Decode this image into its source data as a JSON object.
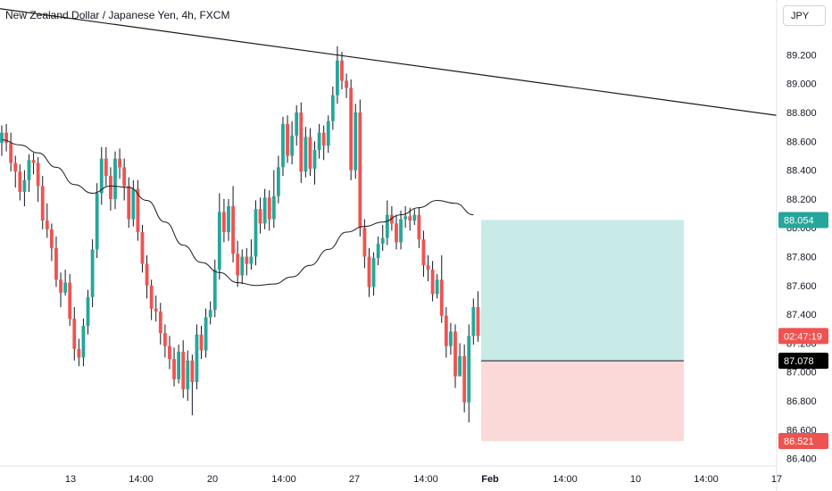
{
  "header": {
    "title": "New Zealand Dollar / Japanese Yen, 4h, FXCM",
    "currency": "JPY"
  },
  "colors": {
    "up": "#26a69a",
    "down": "#ef5350",
    "target_zone": "#c8ebe8",
    "stop_zone": "#fcd9d9",
    "ma": "#1a1a1a",
    "trendline": "#1a1a1a"
  },
  "badges": {
    "target": "88.054",
    "countdown": "02:47:19",
    "entry": "87.078",
    "stop": "86.521"
  },
  "chart_data": {
    "type": "candlestick",
    "symbol": "NZDJPY",
    "timeframe": "4h",
    "y_ticks": [
      "89.200",
      "89.000",
      "88.800",
      "88.600",
      "88.400",
      "88.200",
      "88.000",
      "87.800",
      "87.600",
      "87.400",
      "87.200",
      "87.000",
      "86.800",
      "86.600",
      "86.400"
    ],
    "x_ticks": [
      "13",
      "14:00",
      "20",
      "14:00",
      "27",
      "14:00",
      "Feb",
      "14:00",
      "10",
      "14:00",
      "17"
    ],
    "ylim": [
      86.37,
      89.33
    ],
    "trendline": [
      [
        0,
        89.52
      ],
      [
        1,
        88.78
      ]
    ],
    "position": {
      "target": 88.054,
      "entry": 87.078,
      "stop": 86.521
    },
    "candles": [
      [
        88.59,
        88.66,
        88.71,
        88.5
      ],
      [
        88.66,
        88.59,
        88.72,
        88.53
      ],
      [
        88.59,
        88.45,
        88.66,
        88.39
      ],
      [
        88.45,
        88.39,
        88.5,
        88.28
      ],
      [
        88.39,
        88.25,
        88.44,
        88.19
      ],
      [
        88.25,
        88.33,
        88.4,
        88.15
      ],
      [
        88.33,
        88.47,
        88.51,
        88.25
      ],
      [
        88.47,
        88.45,
        88.52,
        88.37
      ],
      [
        88.45,
        88.29,
        88.49,
        88.18
      ],
      [
        88.29,
        88.05,
        88.36,
        87.99
      ],
      [
        88.05,
        87.99,
        88.17,
        87.93
      ],
      [
        87.99,
        87.86,
        88.03,
        87.77
      ],
      [
        87.86,
        87.64,
        87.94,
        87.59
      ],
      [
        87.64,
        87.55,
        87.69,
        87.45
      ],
      [
        87.55,
        87.62,
        87.71,
        87.53
      ],
      [
        87.62,
        87.37,
        87.68,
        87.32
      ],
      [
        87.37,
        87.16,
        87.45,
        87.08
      ],
      [
        87.16,
        87.1,
        87.23,
        87.04
      ],
      [
        87.1,
        87.32,
        87.37,
        87.04
      ],
      [
        87.32,
        87.52,
        87.57,
        87.26
      ],
      [
        87.52,
        87.85,
        87.92,
        87.45
      ],
      [
        87.85,
        88.24,
        88.31,
        87.79
      ],
      [
        88.24,
        88.48,
        88.56,
        88.16
      ],
      [
        88.48,
        88.36,
        88.56,
        88.29
      ],
      [
        88.36,
        88.2,
        88.42,
        88.12
      ],
      [
        88.2,
        88.48,
        88.53,
        88.13
      ],
      [
        88.48,
        88.42,
        88.55,
        88.34
      ],
      [
        88.42,
        88.29,
        88.48,
        88.19
      ],
      [
        88.29,
        88.06,
        88.35,
        88.0
      ],
      [
        88.06,
        88.27,
        88.33,
        88.01
      ],
      [
        88.27,
        87.97,
        88.33,
        87.91
      ],
      [
        87.97,
        87.75,
        88.02,
        87.69
      ],
      [
        87.75,
        87.6,
        87.81,
        87.51
      ],
      [
        87.6,
        87.44,
        87.64,
        87.36
      ],
      [
        87.44,
        87.42,
        87.53,
        87.35
      ],
      [
        87.42,
        87.27,
        87.48,
        87.19
      ],
      [
        87.27,
        87.18,
        87.33,
        87.1
      ],
      [
        87.18,
        87.09,
        87.25,
        87.02
      ],
      [
        87.09,
        86.95,
        87.17,
        86.9
      ],
      [
        86.95,
        87.14,
        87.19,
        86.92
      ],
      [
        87.14,
        86.88,
        87.22,
        86.82
      ],
      [
        86.88,
        87.08,
        87.15,
        86.8
      ],
      [
        87.08,
        86.93,
        87.12,
        86.7
      ],
      [
        86.93,
        87.26,
        87.33,
        86.88
      ],
      [
        87.26,
        87.15,
        87.32,
        87.09
      ],
      [
        87.15,
        87.38,
        87.44,
        87.1
      ],
      [
        87.38,
        87.43,
        87.49,
        87.33
      ],
      [
        87.43,
        87.71,
        87.78,
        87.38
      ],
      [
        87.71,
        88.11,
        88.24,
        87.64
      ],
      [
        88.11,
        87.97,
        88.2,
        87.9
      ],
      [
        87.97,
        88.15,
        88.2,
        87.91
      ],
      [
        88.15,
        87.82,
        88.29,
        87.76
      ],
      [
        87.82,
        87.67,
        87.91,
        87.59
      ],
      [
        87.67,
        87.8,
        87.85,
        87.61
      ],
      [
        87.8,
        87.75,
        87.86,
        87.67
      ],
      [
        87.75,
        87.8,
        87.92,
        87.71
      ],
      [
        87.8,
        88.13,
        88.19,
        87.74
      ],
      [
        88.13,
        88.03,
        88.21,
        87.96
      ],
      [
        88.03,
        88.21,
        88.27,
        87.99
      ],
      [
        88.21,
        88.06,
        88.26,
        87.98
      ],
      [
        88.06,
        88.22,
        88.4,
        88.0
      ],
      [
        88.22,
        88.42,
        88.5,
        88.17
      ],
      [
        88.42,
        88.72,
        88.77,
        88.36
      ],
      [
        88.72,
        88.5,
        88.78,
        88.45
      ],
      [
        88.5,
        88.64,
        88.74,
        88.44
      ],
      [
        88.64,
        88.8,
        88.85,
        88.57
      ],
      [
        88.8,
        88.39,
        88.87,
        88.31
      ],
      [
        88.39,
        88.63,
        88.7,
        88.35
      ],
      [
        88.63,
        88.41,
        88.69,
        88.36
      ],
      [
        88.41,
        88.54,
        88.6,
        88.3
      ],
      [
        88.54,
        88.66,
        88.72,
        88.48
      ],
      [
        88.66,
        88.57,
        88.71,
        88.47
      ],
      [
        88.57,
        88.74,
        88.78,
        88.52
      ],
      [
        88.74,
        88.92,
        88.98,
        88.68
      ],
      [
        88.92,
        89.16,
        89.26,
        88.86
      ],
      [
        89.16,
        89.02,
        89.22,
        88.96
      ],
      [
        89.02,
        88.97,
        89.07,
        88.9
      ],
      [
        88.97,
        88.4,
        89.03,
        88.33
      ],
      [
        88.4,
        88.8,
        88.86,
        88.34
      ],
      [
        88.8,
        88.0,
        88.89,
        87.94
      ],
      [
        88.0,
        87.8,
        88.06,
        87.72
      ],
      [
        87.8,
        87.59,
        87.86,
        87.52
      ],
      [
        87.59,
        87.79,
        87.83,
        87.53
      ],
      [
        87.79,
        87.89,
        87.94,
        87.74
      ],
      [
        87.89,
        87.93,
        88.02,
        87.84
      ],
      [
        87.93,
        88.09,
        88.19,
        87.88
      ],
      [
        88.09,
        88.03,
        88.15,
        87.98
      ],
      [
        88.03,
        87.9,
        88.09,
        87.85
      ],
      [
        87.9,
        88.06,
        88.12,
        87.85
      ],
      [
        88.06,
        88.08,
        88.15,
        88.0
      ],
      [
        88.08,
        88.05,
        88.14,
        87.98
      ],
      [
        88.05,
        88.09,
        88.13,
        88.02
      ],
      [
        88.09,
        87.92,
        88.14,
        87.86
      ],
      [
        87.92,
        87.74,
        87.98,
        87.66
      ],
      [
        87.74,
        87.71,
        87.81,
        87.63
      ],
      [
        87.71,
        87.54,
        87.77,
        87.49
      ],
      [
        87.54,
        87.64,
        87.68,
        87.51
      ],
      [
        87.64,
        87.39,
        87.81,
        87.34
      ],
      [
        87.39,
        87.18,
        87.45,
        87.1
      ],
      [
        87.18,
        87.28,
        87.34,
        87.12
      ],
      [
        87.28,
        86.97,
        87.33,
        86.89
      ],
      [
        86.97,
        87.11,
        87.2,
        87.03
      ],
      [
        87.11,
        86.79,
        87.19,
        86.72
      ],
      [
        86.79,
        87.25,
        87.33,
        86.65
      ],
      [
        87.25,
        87.45,
        87.51,
        87.19
      ],
      [
        87.45,
        87.25,
        87.56,
        87.21
      ]
    ],
    "ma": [
      [
        0,
        88.61
      ],
      [
        4,
        88.575
      ],
      [
        8,
        88.52
      ],
      [
        12,
        88.42
      ],
      [
        16,
        88.3
      ],
      [
        20,
        88.24
      ],
      [
        24,
        88.29
      ],
      [
        28,
        88.28
      ],
      [
        32,
        88.19
      ],
      [
        36,
        88.04
      ],
      [
        40,
        87.88
      ],
      [
        44,
        87.76
      ],
      [
        48,
        87.69
      ],
      [
        52,
        87.62
      ],
      [
        56,
        87.6
      ],
      [
        60,
        87.61
      ],
      [
        64,
        87.66
      ],
      [
        68,
        87.74
      ],
      [
        72,
        87.85
      ],
      [
        76,
        87.97
      ],
      [
        80,
        88.01
      ],
      [
        84,
        88.04
      ],
      [
        88,
        88.09
      ],
      [
        92,
        88.14
      ],
      [
        96,
        88.19
      ],
      [
        100,
        88.17
      ],
      [
        104,
        88.09
      ]
    ]
  }
}
